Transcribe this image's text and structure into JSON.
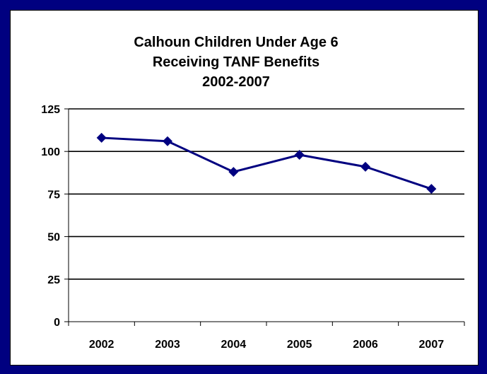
{
  "colors": {
    "frame": "#000080",
    "series": "#000080",
    "gridline": "#000000",
    "background": "#ffffff"
  },
  "chart_data": {
    "type": "line",
    "title": [
      "Calhoun Children Under Age 6",
      "Receiving TANF Benefits",
      "2002-2007"
    ],
    "xlabel": "",
    "ylabel": "",
    "categories": [
      "2002",
      "2003",
      "2004",
      "2005",
      "2006",
      "2007"
    ],
    "values": [
      108,
      106,
      88,
      98,
      91,
      78
    ],
    "ylim": [
      0,
      125
    ],
    "y_ticks": [
      "0",
      "25",
      "50",
      "75",
      "100",
      "125"
    ],
    "grid": true,
    "legend": "none",
    "marker": "diamond"
  }
}
